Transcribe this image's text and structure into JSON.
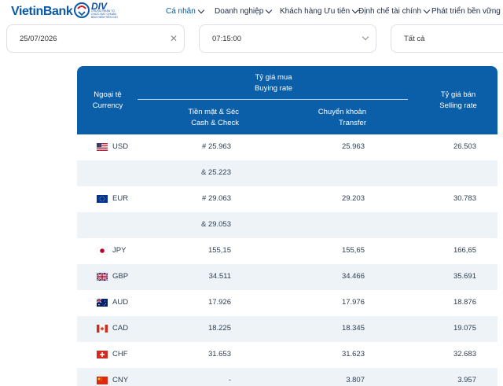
{
  "brand": {
    "name": "VietinBank",
    "badge_title": "DIV",
    "badge_text": "CHỨNG NHẬN TỔ CHỨC ĐẠT CHUẨN BẢO HIỂM TIỀN GỬI"
  },
  "nav": [
    {
      "label": "Cá nhân",
      "active": true
    },
    {
      "label": "Doanh nghiệp"
    },
    {
      "label": "Khách hàng Ưu tiên"
    },
    {
      "label": "Định chế tài chính"
    },
    {
      "label": "Phát triển bền vững"
    }
  ],
  "filters": {
    "date": "25/07/2026",
    "time": "07:15:00",
    "type": "Tất cả"
  },
  "table": {
    "headers": {
      "currency_vi": "Ngoại tệ",
      "currency_en": "Currency",
      "buy_vi": "Tỷ giá mua",
      "buy_en": "Buying rate",
      "cash_vi": "Tiền mặt & Séc",
      "cash_en": "Cash & Check",
      "transfer_vi": "Chuyển khoản",
      "transfer_en": "Transfer",
      "sell_vi": "Tỷ giá bán",
      "sell_en": "Selling rate"
    },
    "rows": [
      {
        "flag": "us-flag-icon",
        "code": "USD",
        "cash": "# 25.963",
        "transfer": "25.963",
        "sell": "26.503"
      },
      {
        "flag": "",
        "code": "",
        "cash": "& 25.223",
        "transfer": "",
        "sell": ""
      },
      {
        "flag": "eu-flag-icon",
        "code": "EUR",
        "cash": "# 29.063",
        "transfer": "29.203",
        "sell": "30.783"
      },
      {
        "flag": "",
        "code": "",
        "cash": "& 29.053",
        "transfer": "",
        "sell": ""
      },
      {
        "flag": "jp-flag-icon",
        "code": "JPY",
        "cash": "155,15",
        "transfer": "155,65",
        "sell": "166,65"
      },
      {
        "flag": "gb-flag-icon",
        "code": "GBP",
        "cash": "34.511",
        "transfer": "34.466",
        "sell": "35.691"
      },
      {
        "flag": "au-flag-icon",
        "code": "AUD",
        "cash": "17.926",
        "transfer": "17.976",
        "sell": "18.876"
      },
      {
        "flag": "ca-flag-icon",
        "code": "CAD",
        "cash": "18.225",
        "transfer": "18.345",
        "sell": "19.075"
      },
      {
        "flag": "ch-flag-icon",
        "code": "CHF",
        "cash": "31.653",
        "transfer": "31.623",
        "sell": "32.683"
      },
      {
        "flag": "cn-flag-icon",
        "code": "CNY",
        "cash": "-",
        "transfer": "3.807",
        "sell": "3.957"
      }
    ]
  },
  "colors": {
    "header_bg": "#0b5fa8",
    "alt_row": "#eef3f8",
    "brand_blue": "#0a5aa7",
    "accent_red": "#d71920"
  }
}
